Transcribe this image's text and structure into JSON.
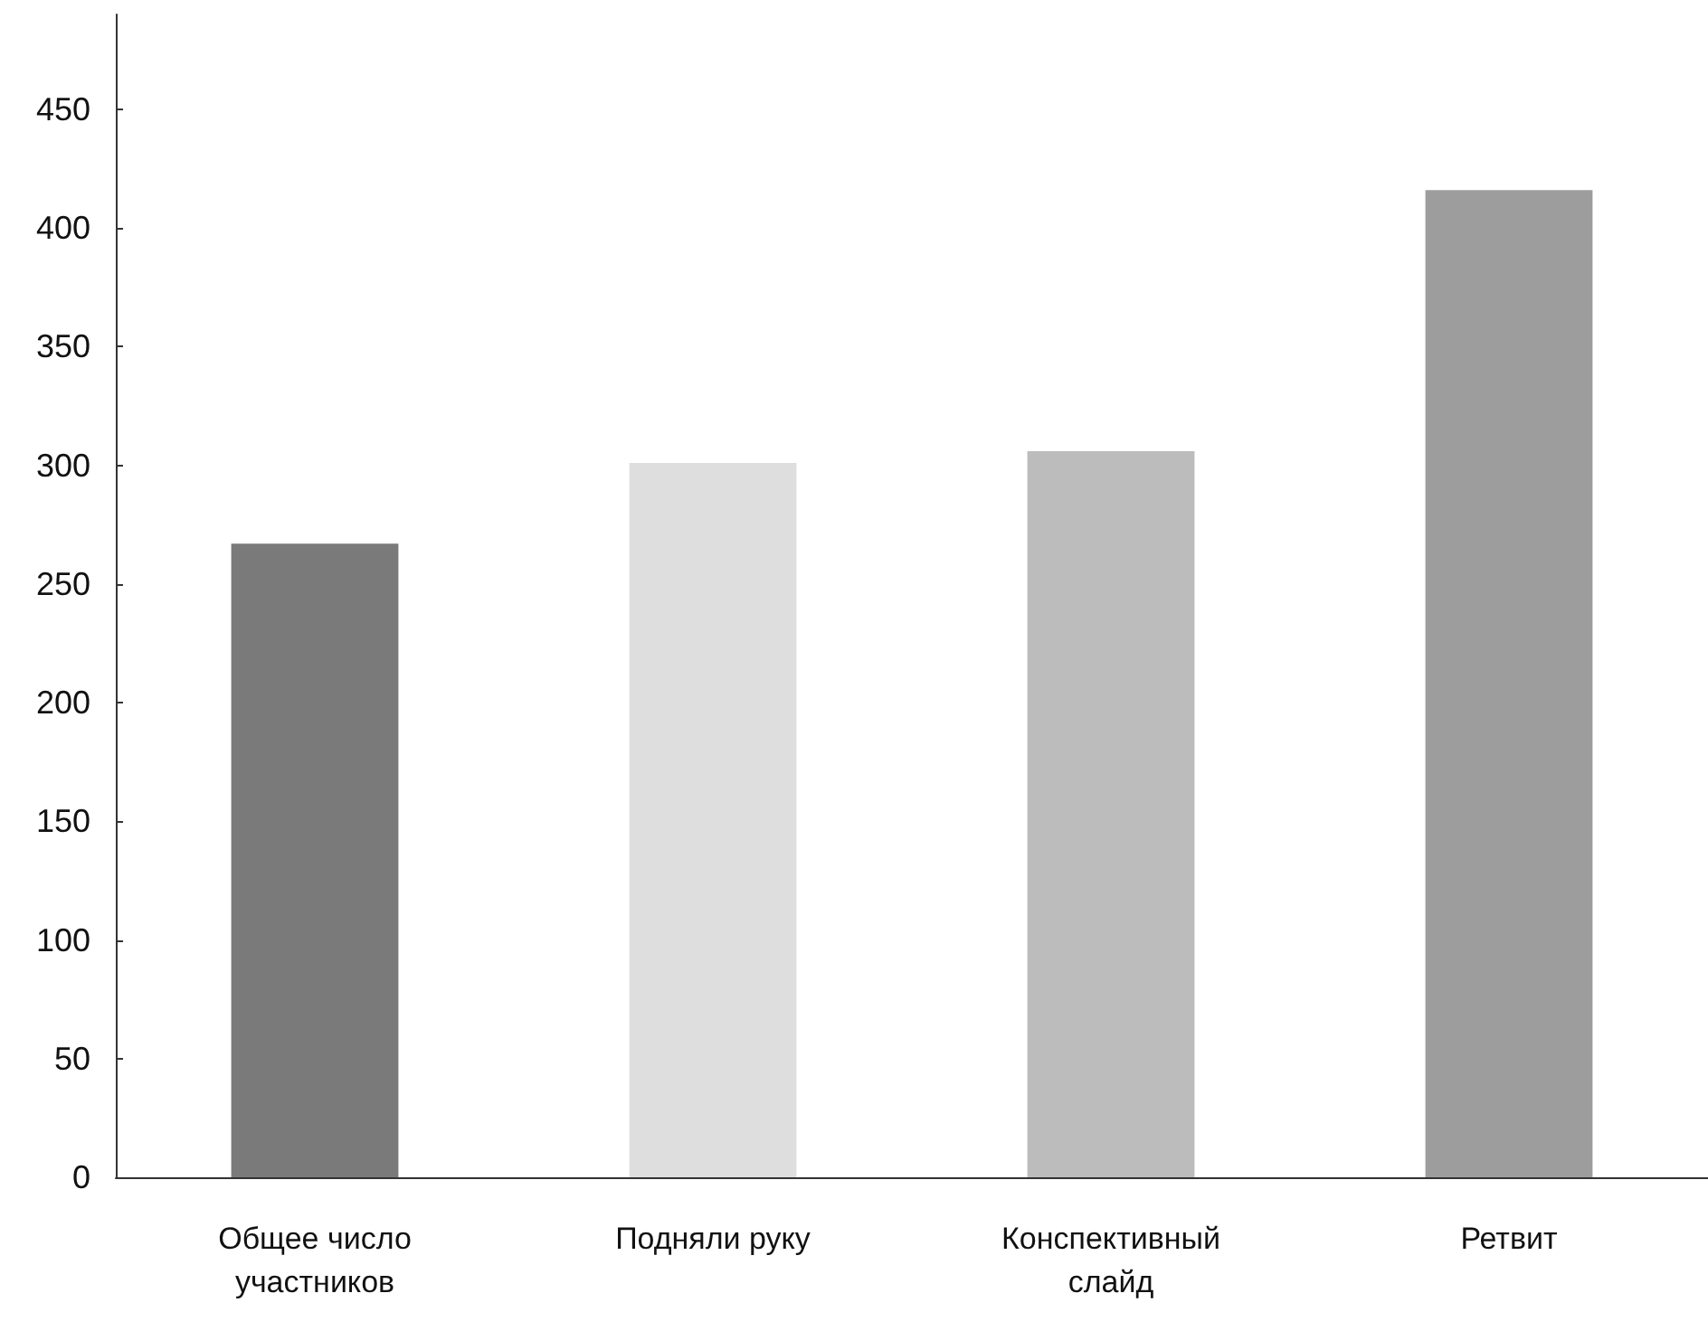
{
  "chart_data": {
    "type": "bar",
    "categories": [
      "Общее число участников",
      "Подняли руку",
      "Конспективный слайд",
      "Ретвит"
    ],
    "values": [
      267,
      301,
      306,
      416
    ],
    "colors": [
      "#7a7a7a",
      "#dedede",
      "#bcbcbc",
      "#9d9d9d"
    ],
    "ylim": [
      0,
      490
    ],
    "yticks": [
      0,
      50,
      100,
      150,
      200,
      250,
      300,
      350,
      400,
      450
    ],
    "grid": false
  }
}
